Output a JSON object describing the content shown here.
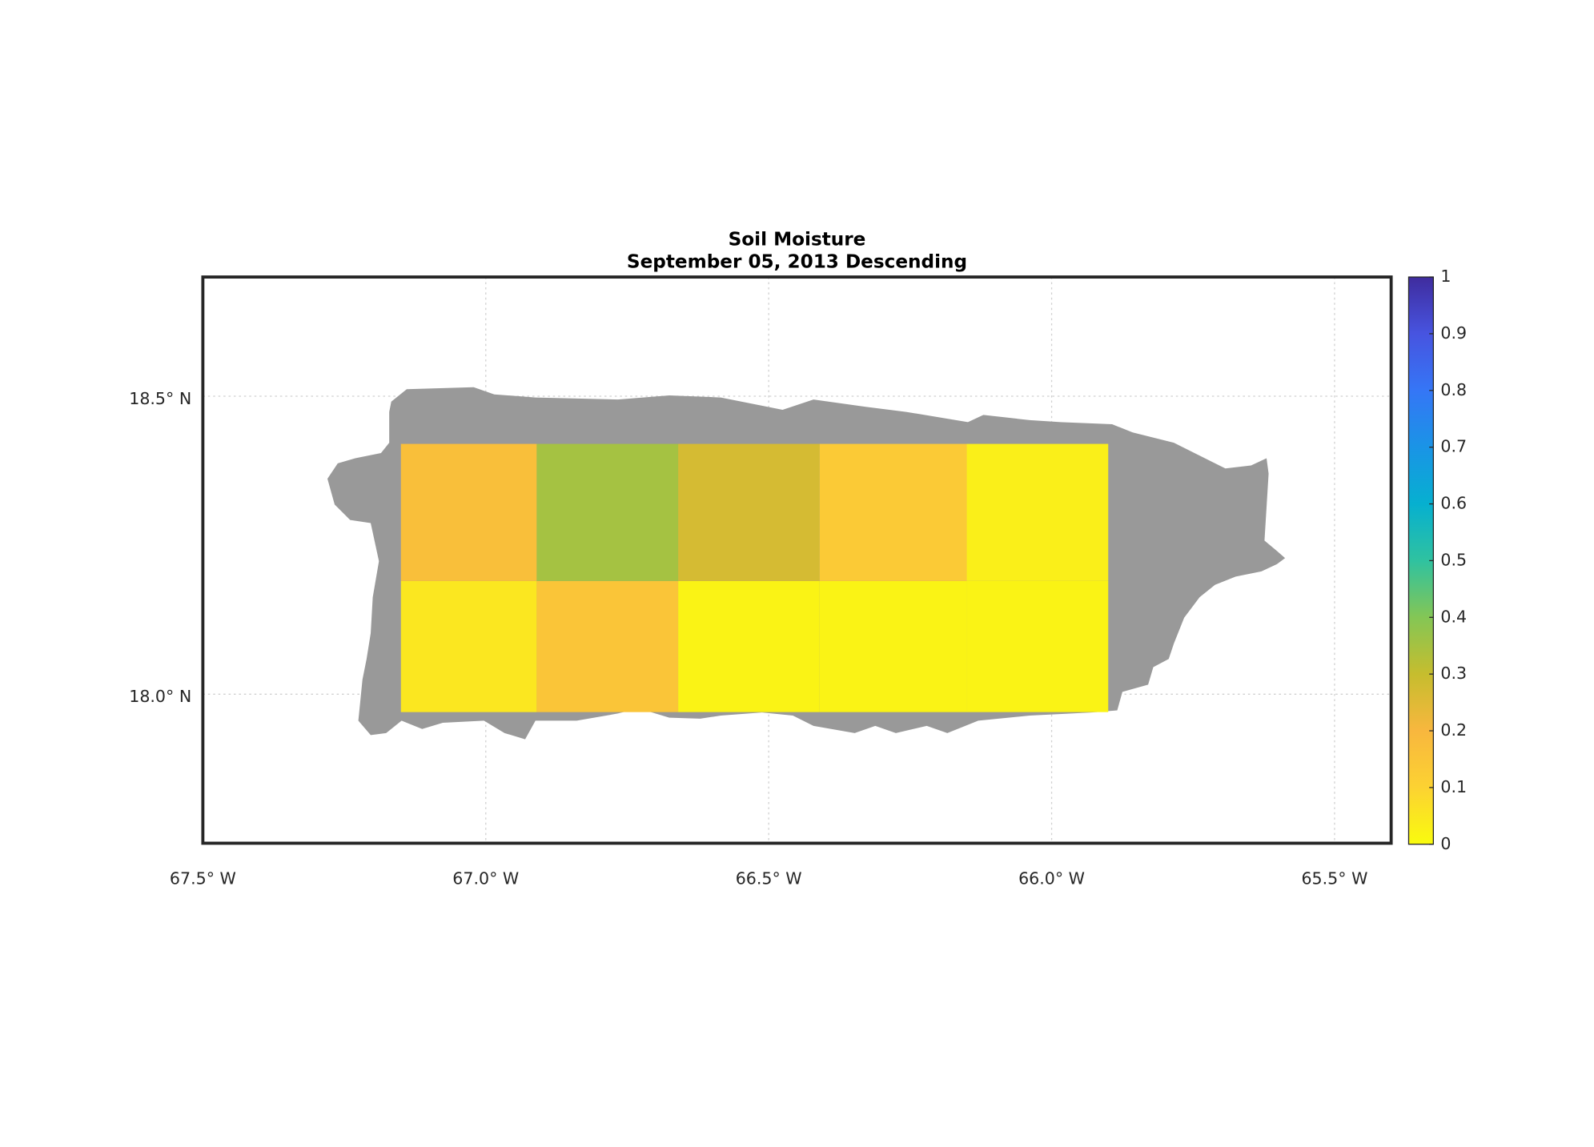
{
  "chart_data": {
    "type": "heatmap",
    "title": "Soil Moisture",
    "subtitle": "September 05, 2013 Descending",
    "xlim": [
      -67.5,
      -65.4
    ],
    "ylim": [
      17.75,
      18.7
    ],
    "xticks": [
      {
        "value": -67.5,
        "label": "67.5° W"
      },
      {
        "value": -67.0,
        "label": "67.0° W"
      },
      {
        "value": -66.5,
        "label": "66.5° W"
      },
      {
        "value": -66.0,
        "label": "66.0° W"
      },
      {
        "value": -65.5,
        "label": "65.5° W"
      }
    ],
    "yticks": [
      {
        "value": 18.0,
        "label": "18.0° N"
      },
      {
        "value": 18.5,
        "label": "18.5° N"
      }
    ],
    "grid": true,
    "lon_edges": [
      -67.15,
      -66.91,
      -66.66,
      -66.41,
      -66.15,
      -65.9
    ],
    "lat_edges": [
      17.97,
      18.19,
      18.42
    ],
    "values": [
      [
        0.05,
        0.15,
        0.02,
        0.02,
        0.02
      ],
      [
        0.17,
        0.35,
        0.27,
        0.13,
        0.03
      ]
    ],
    "clim": [
      0,
      1
    ],
    "cticks": [
      0,
      0.1,
      0.2,
      0.3,
      0.4,
      0.5,
      0.6,
      0.7,
      0.8,
      0.9,
      1
    ],
    "colormap": [
      "#f9fb0e",
      "#fcd232",
      "#f8b73e",
      "#c6bd2e",
      "#84c655",
      "#2fc2a0",
      "#06b0d0",
      "#1a94e6",
      "#3576f6",
      "#4754e0",
      "#3f2c9e"
    ],
    "land_color": "#999999"
  }
}
